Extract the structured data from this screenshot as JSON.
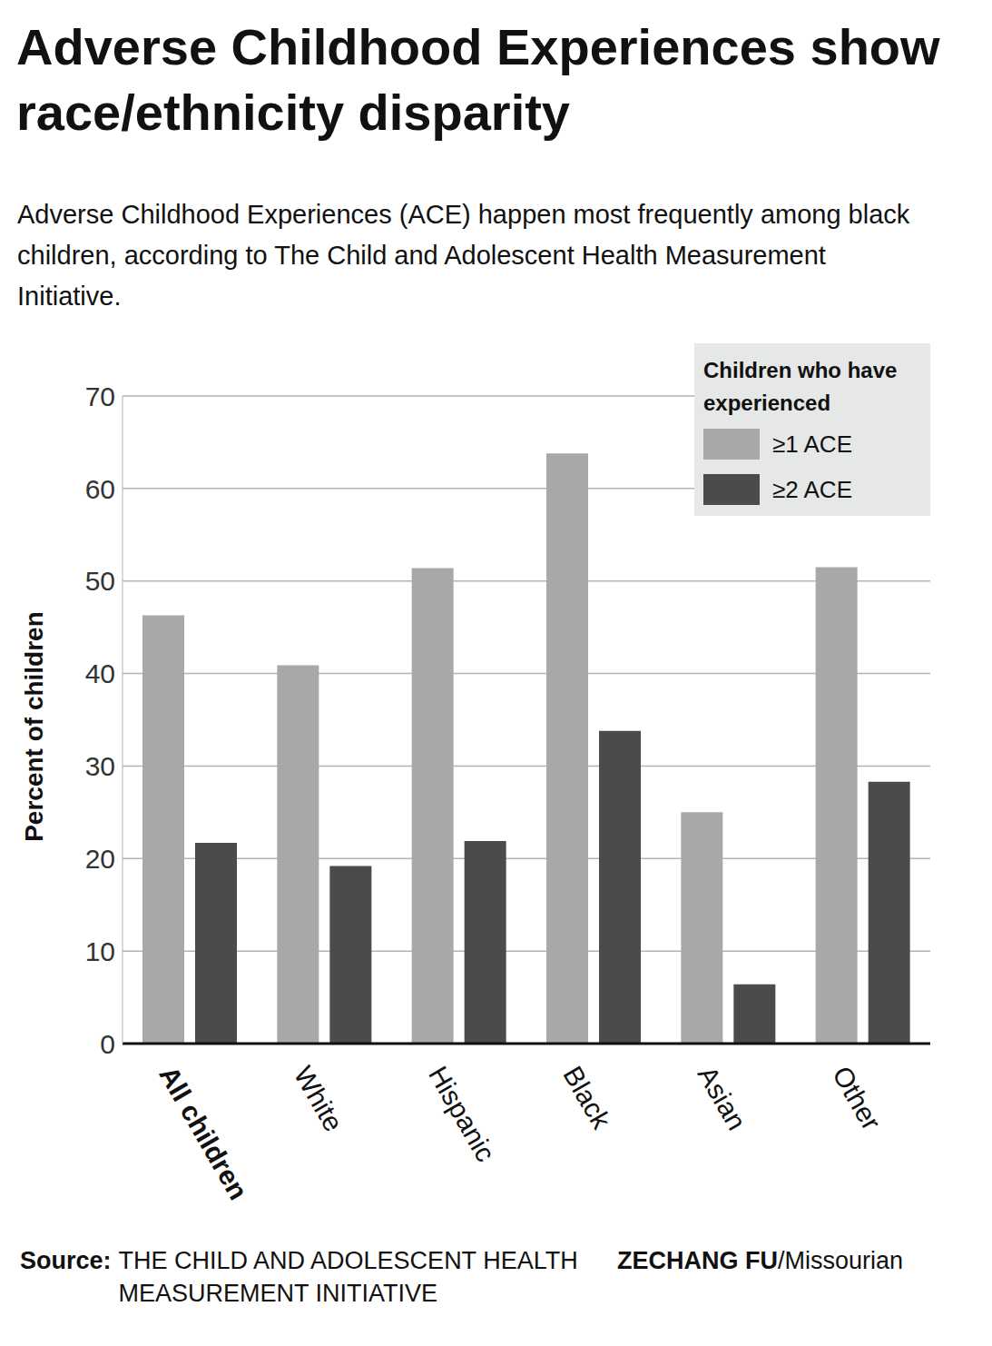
{
  "chart_data": {
    "type": "bar",
    "title": "Adverse Childhood Experiences show race/ethnicity disparity",
    "subtitle": "Adverse Childhood Experiences (ACE) happen most frequently among black children, according to The Child and Adolescent Health Measurement Initiative.",
    "y_label": "Percent of children",
    "categories": [
      "All children",
      "White",
      "Hispanic",
      "Black",
      "Asian",
      "Other"
    ],
    "series": [
      {
        "name": "≥1 ACE",
        "color": "#a7a8aa",
        "values": [
          46.3,
          40.9,
          51.4,
          63.8,
          25.0,
          51.5
        ]
      },
      {
        "name": "≥2 ACE",
        "color": "#4a4b4d",
        "values": [
          21.7,
          19.2,
          21.9,
          33.8,
          6.4,
          28.3
        ]
      }
    ],
    "ylim": [
      0,
      70
    ],
    "yticks": [
      0,
      10,
      20,
      30,
      40,
      50,
      60,
      70
    ],
    "grid": true,
    "legend": "upper right",
    "legend_title": "Children who have experienced",
    "source_label": "Source:",
    "source": "THE CHILD AND ADOLESCENT HEALTH MEASUREMENT INITIATIVE",
    "credit_name": "ZECHANG FU",
    "credit_org": "/Missourian"
  }
}
